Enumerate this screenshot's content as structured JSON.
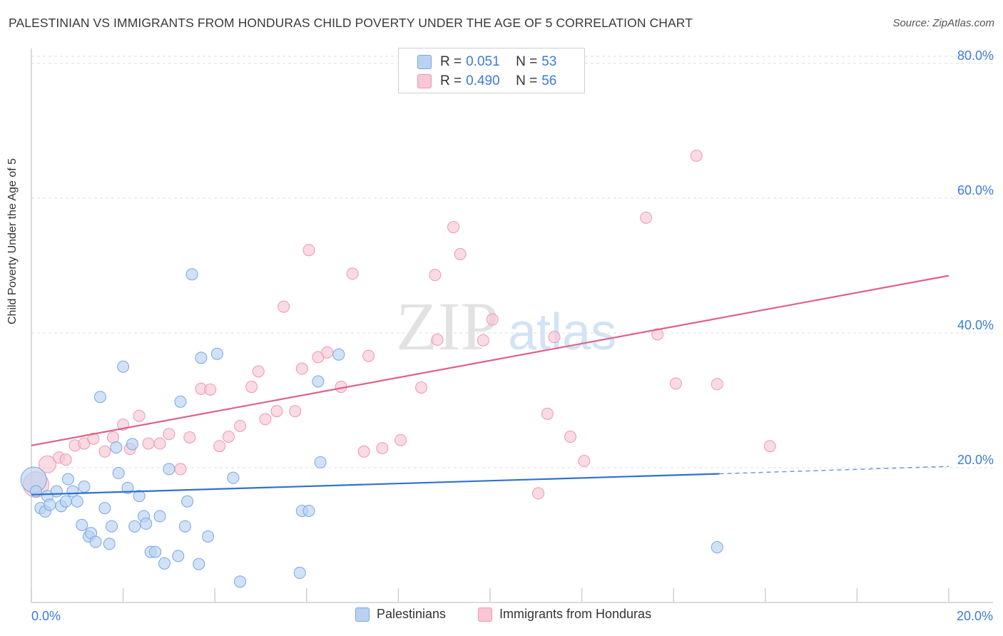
{
  "title": "PALESTINIAN VS IMMIGRANTS FROM HONDURAS CHILD POVERTY UNDER THE AGE OF 5 CORRELATION CHART",
  "source": "Source: ZipAtlas.com",
  "watermark": {
    "zip": "ZIP",
    "atlas": "atlas"
  },
  "colors": {
    "blue_fill": "#b8d3f2",
    "blue_stroke": "#7aa6e0",
    "blue_line": "#2f72cc",
    "pink_fill": "#f8c6d4",
    "pink_stroke": "#eb98b2",
    "pink_line": "#e0608a",
    "tick_label": "#3d7bd6",
    "grid": "#dddddd"
  },
  "legend": {
    "rows": [
      {
        "r_label": "R =",
        "r_value": "0.051",
        "n_label": "N =",
        "n_value": "53"
      },
      {
        "r_label": "R =",
        "r_value": "0.490",
        "n_label": "N =",
        "n_value": "56"
      }
    ]
  },
  "bottom_legend": {
    "blue": "Palestinians",
    "pink": "Immigrants from Honduras"
  },
  "chart_data": {
    "type": "scatter",
    "xlabel": "",
    "ylabel": "Child Poverty Under the Age of 5",
    "xlim": [
      0,
      20
    ],
    "ylim": [
      0,
      82
    ],
    "x_tick_labels": [
      {
        "value": 0,
        "label": "0.0%"
      },
      {
        "value": 20,
        "label": "20.0%"
      }
    ],
    "y_ticks": [
      {
        "value": 20,
        "label": "20.0%"
      },
      {
        "value": 40,
        "label": "40.0%"
      },
      {
        "value": 60,
        "label": "60.0%"
      },
      {
        "value": 80,
        "label": "80.0%"
      }
    ],
    "series": [
      {
        "name": "Palestinians",
        "R": 0.051,
        "N": 53,
        "trend": {
          "x_solid": [
            0,
            15
          ],
          "y_solid": [
            16.0,
            19.1
          ],
          "x_dash": [
            15,
            20
          ],
          "y_dash": [
            19.1,
            20.2
          ]
        },
        "points": [
          [
            0.05,
            18.2
          ],
          [
            0.1,
            16.5
          ],
          [
            0.2,
            14.0
          ],
          [
            0.3,
            13.5
          ],
          [
            0.35,
            15.8
          ],
          [
            0.4,
            14.5
          ],
          [
            0.55,
            16.5
          ],
          [
            0.65,
            14.3
          ],
          [
            0.75,
            15.0
          ],
          [
            0.8,
            18.3
          ],
          [
            0.9,
            16.5
          ],
          [
            1.0,
            15.0
          ],
          [
            1.1,
            11.5
          ],
          [
            1.15,
            17.2
          ],
          [
            1.25,
            9.8
          ],
          [
            1.3,
            10.3
          ],
          [
            1.4,
            9.0
          ],
          [
            1.5,
            30.5
          ],
          [
            1.6,
            14.0
          ],
          [
            1.7,
            8.7
          ],
          [
            1.75,
            11.3
          ],
          [
            1.85,
            23.0
          ],
          [
            1.9,
            19.2
          ],
          [
            2.0,
            35.0
          ],
          [
            2.1,
            17.0
          ],
          [
            2.2,
            23.5
          ],
          [
            2.25,
            11.3
          ],
          [
            2.35,
            15.8
          ],
          [
            2.45,
            12.8
          ],
          [
            2.5,
            11.7
          ],
          [
            2.6,
            7.5
          ],
          [
            2.7,
            7.5
          ],
          [
            2.8,
            12.8
          ],
          [
            2.9,
            5.8
          ],
          [
            3.0,
            19.8
          ],
          [
            3.2,
            6.9
          ],
          [
            3.25,
            29.8
          ],
          [
            3.35,
            11.3
          ],
          [
            3.4,
            15.0
          ],
          [
            3.5,
            48.7
          ],
          [
            3.65,
            5.7
          ],
          [
            3.7,
            36.3
          ],
          [
            3.85,
            9.8
          ],
          [
            4.05,
            36.9
          ],
          [
            4.4,
            18.5
          ],
          [
            4.55,
            3.1
          ],
          [
            5.85,
            4.4
          ],
          [
            5.9,
            13.6
          ],
          [
            6.05,
            13.6
          ],
          [
            6.25,
            32.8
          ],
          [
            6.3,
            20.8
          ],
          [
            6.7,
            36.8
          ],
          [
            14.95,
            8.2
          ]
        ]
      },
      {
        "name": "Immigrants from Honduras",
        "R": 0.49,
        "N": 56,
        "trend": {
          "x_solid": [
            0,
            20
          ],
          "y_solid": [
            23.3,
            48.5
          ]
        },
        "points": [
          [
            0.1,
            17.5
          ],
          [
            0.35,
            20.5
          ],
          [
            0.6,
            21.5
          ],
          [
            0.75,
            21.2
          ],
          [
            0.95,
            23.3
          ],
          [
            1.15,
            23.6
          ],
          [
            1.35,
            24.3
          ],
          [
            1.6,
            22.4
          ],
          [
            1.78,
            24.5
          ],
          [
            2.0,
            26.4
          ],
          [
            2.15,
            22.8
          ],
          [
            2.35,
            27.7
          ],
          [
            2.55,
            23.6
          ],
          [
            2.8,
            23.6
          ],
          [
            3.0,
            25.0
          ],
          [
            3.25,
            19.8
          ],
          [
            3.45,
            24.5
          ],
          [
            3.7,
            31.7
          ],
          [
            3.9,
            31.6
          ],
          [
            4.1,
            23.2
          ],
          [
            4.3,
            24.6
          ],
          [
            4.55,
            26.2
          ],
          [
            4.8,
            32.0
          ],
          [
            4.95,
            34.3
          ],
          [
            5.1,
            27.2
          ],
          [
            5.35,
            28.4
          ],
          [
            5.5,
            43.9
          ],
          [
            5.75,
            28.4
          ],
          [
            5.9,
            34.7
          ],
          [
            6.05,
            52.3
          ],
          [
            6.25,
            36.4
          ],
          [
            6.45,
            37.1
          ],
          [
            6.75,
            32.0
          ],
          [
            7.0,
            48.8
          ],
          [
            7.25,
            22.4
          ],
          [
            7.35,
            36.6
          ],
          [
            7.65,
            22.9
          ],
          [
            8.05,
            24.1
          ],
          [
            8.5,
            31.9
          ],
          [
            8.8,
            48.6
          ],
          [
            8.85,
            39.0
          ],
          [
            9.2,
            55.7
          ],
          [
            9.35,
            51.7
          ],
          [
            9.85,
            38.9
          ],
          [
            10.05,
            42.0
          ],
          [
            11.05,
            16.2
          ],
          [
            11.25,
            28.0
          ],
          [
            11.4,
            39.4
          ],
          [
            11.75,
            24.6
          ],
          [
            12.05,
            21.0
          ],
          [
            13.4,
            57.1
          ],
          [
            13.65,
            39.8
          ],
          [
            14.05,
            32.5
          ],
          [
            14.5,
            66.3
          ],
          [
            14.95,
            32.4
          ],
          [
            16.1,
            23.2
          ]
        ]
      }
    ]
  }
}
